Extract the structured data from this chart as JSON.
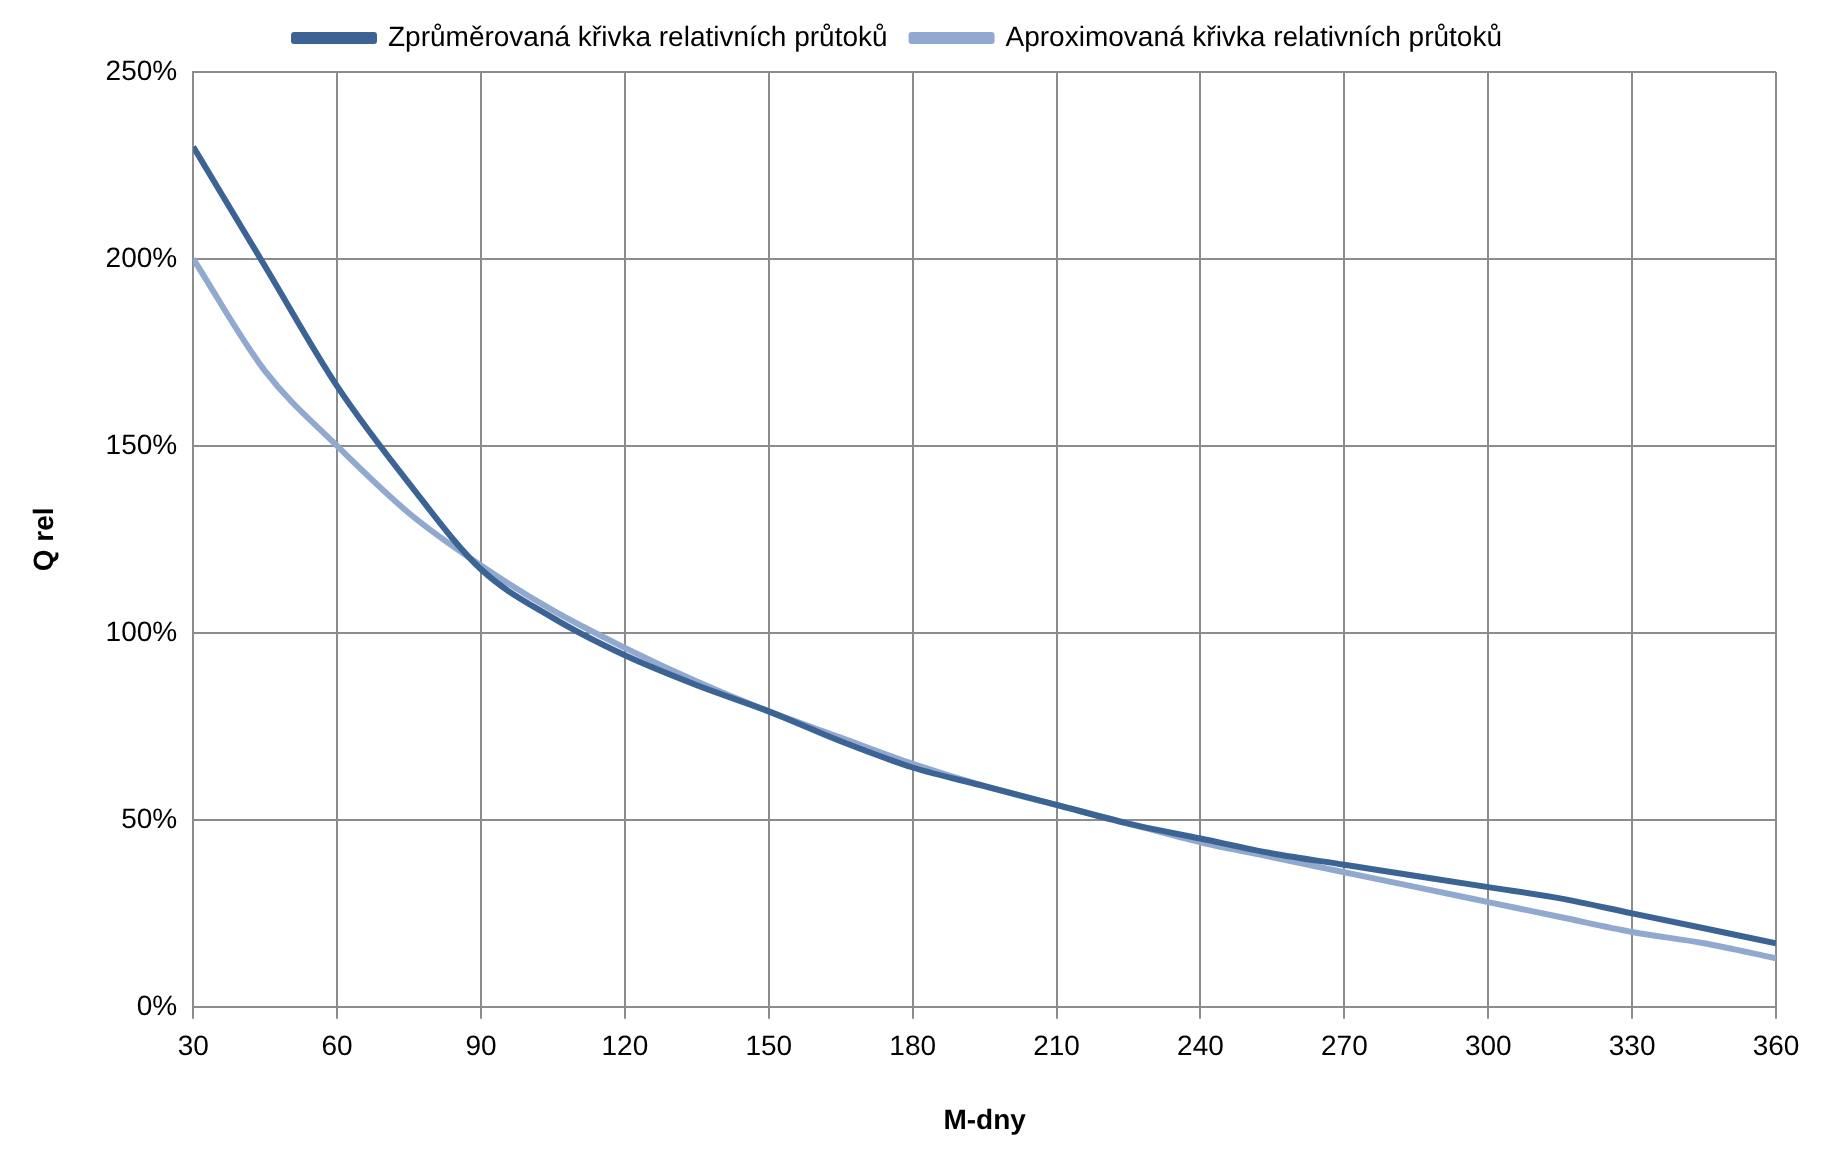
{
  "chart_data": {
    "type": "line",
    "xlabel": "M-dny",
    "ylabel": "Q rel",
    "x": [
      30,
      45,
      60,
      75,
      90,
      105,
      120,
      135,
      150,
      165,
      180,
      195,
      210,
      225,
      240,
      255,
      270,
      285,
      300,
      315,
      330,
      345,
      360
    ],
    "series": [
      {
        "name": "Zprůměrovaná křivka relativních průtoků",
        "color": "#3b6495",
        "values": [
          230,
          198,
          166,
          140,
          117,
          104,
          94,
          86,
          79,
          71,
          64,
          59,
          54,
          49,
          45,
          41,
          38,
          35,
          32,
          29,
          25,
          21,
          17
        ]
      },
      {
        "name": "Aproximovaná křivka relativních průtoků",
        "color": "#92a9cf",
        "values": [
          200,
          170,
          150,
          132,
          118,
          106,
          96,
          87,
          79,
          72,
          65,
          59,
          54,
          49,
          44,
          40,
          36,
          32,
          28,
          24,
          20,
          17,
          13
        ]
      }
    ],
    "xlim": [
      30,
      360
    ],
    "xticks": [
      30,
      60,
      90,
      120,
      150,
      180,
      210,
      240,
      270,
      300,
      330,
      360
    ],
    "ylim": [
      0,
      250
    ],
    "yticks": [
      {
        "value": 0,
        "label": "0%"
      },
      {
        "value": 50,
        "label": "50%"
      },
      {
        "value": 100,
        "label": "100%"
      },
      {
        "value": 150,
        "label": "150%"
      },
      {
        "value": 200,
        "label": "200%"
      },
      {
        "value": 250,
        "label": "250%"
      }
    ],
    "grid": true,
    "legend": "top",
    "marker": "none",
    "line_style": "solid"
  }
}
